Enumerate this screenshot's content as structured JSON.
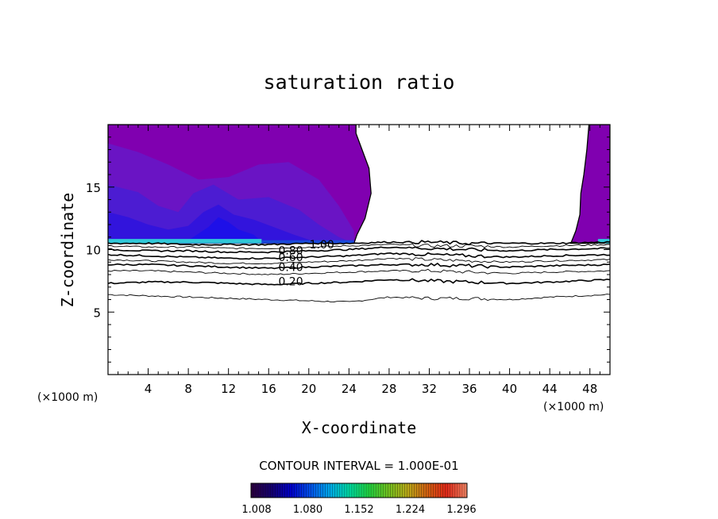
{
  "chart_data": {
    "type": "contour",
    "title": "saturation ratio",
    "xlabel": "X-coordinate",
    "ylabel": "Z-coordinate",
    "x_unit": "(×1000 m)",
    "z_unit": "(×1000 m)",
    "xlim": [
      0,
      50
    ],
    "ylim": [
      0,
      20
    ],
    "x_ticks": [
      "4",
      "8",
      "12",
      "16",
      "20",
      "24",
      "28",
      "32",
      "36",
      "40",
      "44",
      "48"
    ],
    "y_ticks": [
      "5",
      "10",
      "15"
    ],
    "contour_interval_label": "CONTOUR INTERVAL = 1.000E-01",
    "contour_levels": [
      {
        "level": 0.2,
        "label": "0.20",
        "z": [
          7.3,
          7.4,
          7.4,
          7.3,
          7.2,
          7.3,
          7.4,
          7.6,
          7.5,
          7.4,
          7.3,
          7.4,
          7.6
        ]
      },
      {
        "level": 0.4,
        "label": "0.40",
        "z": [
          8.8,
          8.8,
          8.7,
          8.6,
          8.5,
          8.6,
          8.7,
          8.8,
          8.8,
          8.7,
          8.6,
          8.7,
          8.8
        ]
      },
      {
        "level": 0.6,
        "label": "0.60",
        "z": [
          9.6,
          9.5,
          9.4,
          9.3,
          9.3,
          9.4,
          9.5,
          9.7,
          9.6,
          9.5,
          9.4,
          9.5,
          9.6
        ]
      },
      {
        "level": 0.8,
        "label": "0.80",
        "z": [
          10.0,
          9.9,
          9.9,
          9.8,
          9.8,
          9.9,
          10.0,
          10.2,
          10.1,
          10.0,
          9.9,
          10.0,
          10.1
        ]
      },
      {
        "level": 1.0,
        "label": "1.00",
        "z": [
          10.5,
          10.5,
          10.4,
          10.4,
          10.4,
          10.5,
          10.5,
          10.6,
          10.6,
          10.5,
          10.5,
          10.5,
          10.6
        ]
      }
    ],
    "unlabeled_contours": [
      {
        "z": [
          6.4,
          6.3,
          6.2,
          6.1,
          6.0,
          5.9,
          5.8,
          6.2,
          6.1,
          6.1,
          6.0,
          6.2,
          6.4
        ]
      },
      {
        "z": [
          8.3,
          8.3,
          8.2,
          8.1,
          8.0,
          8.1,
          8.2,
          8.3,
          8.3,
          8.2,
          8.1,
          8.2,
          8.3
        ]
      },
      {
        "z": [
          9.2,
          9.1,
          9.0,
          8.9,
          8.9,
          9.0,
          9.1,
          9.3,
          9.2,
          9.1,
          9.0,
          9.1,
          9.2
        ]
      },
      {
        "z": [
          10.3,
          10.2,
          10.2,
          10.1,
          10.1,
          10.2,
          10.3,
          10.4,
          10.3,
          10.3,
          10.2,
          10.3,
          10.4
        ]
      }
    ],
    "contour_x": [
      0,
      4,
      8,
      12,
      16,
      20,
      24,
      28,
      32,
      36,
      40,
      44,
      50
    ],
    "supersaturated_regions": [
      {
        "boundary_x": [
          0,
          0,
          24.5,
          24.8,
          25.6,
          26.2,
          26.0,
          25.3,
          24.7,
          24.7
        ],
        "boundary_z": [
          20,
          10.5,
          10.5,
          11.2,
          12.5,
          14.5,
          16.5,
          18.0,
          19.3,
          20
        ]
      },
      {
        "boundary_x": [
          46.1,
          46.6,
          47.0,
          47.1,
          47.4,
          47.7,
          47.9,
          50,
          50
        ],
        "boundary_z": [
          10.5,
          11.5,
          12.8,
          14.5,
          16.0,
          18.0,
          20,
          20,
          10.5
        ]
      }
    ],
    "colorbar": {
      "ticks": [
        "1.008",
        "1.080",
        "1.152",
        "1.224",
        "1.296"
      ],
      "colors": [
        "#2a0040",
        "#14006e",
        "#0000c8",
        "#0050e8",
        "#00a8e8",
        "#00d8a0",
        "#20d040",
        "#70c020",
        "#b8a818",
        "#d06010",
        "#e02818",
        "#f08060"
      ]
    },
    "fill_colors": {
      "base": "#8000b0",
      "mid": "#6a14c4",
      "deep": "#4c1cd2",
      "deeper": "#3214dc",
      "core": "#1e10e8",
      "band": "#30c8d8"
    }
  }
}
